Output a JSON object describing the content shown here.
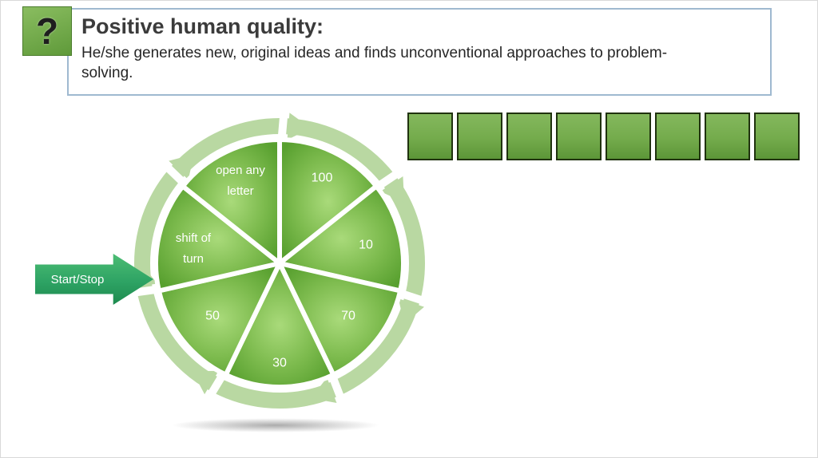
{
  "slide": {
    "question_icon": {
      "glyph": "?"
    },
    "header": {
      "title": "Positive human quality:",
      "body": "He/she generates new, original ideas and finds unconventional approaches to problem-solving."
    },
    "letter_row": {
      "count": 8
    },
    "wheel": {
      "segments": [
        {
          "label": "100"
        },
        {
          "label": "10"
        },
        {
          "label": "70"
        },
        {
          "label": "30"
        },
        {
          "label": "50"
        },
        {
          "label": "shift of turn"
        },
        {
          "label": "open any letter"
        }
      ]
    },
    "start_button": {
      "label": "Start/Stop"
    },
    "colors": {
      "header_border": "#9fb9d0",
      "box_green": "#74ab4c",
      "ring_green": "#b9d8a2",
      "slice_green": "#6fb13f",
      "arrow_green": "#2ea364"
    }
  }
}
